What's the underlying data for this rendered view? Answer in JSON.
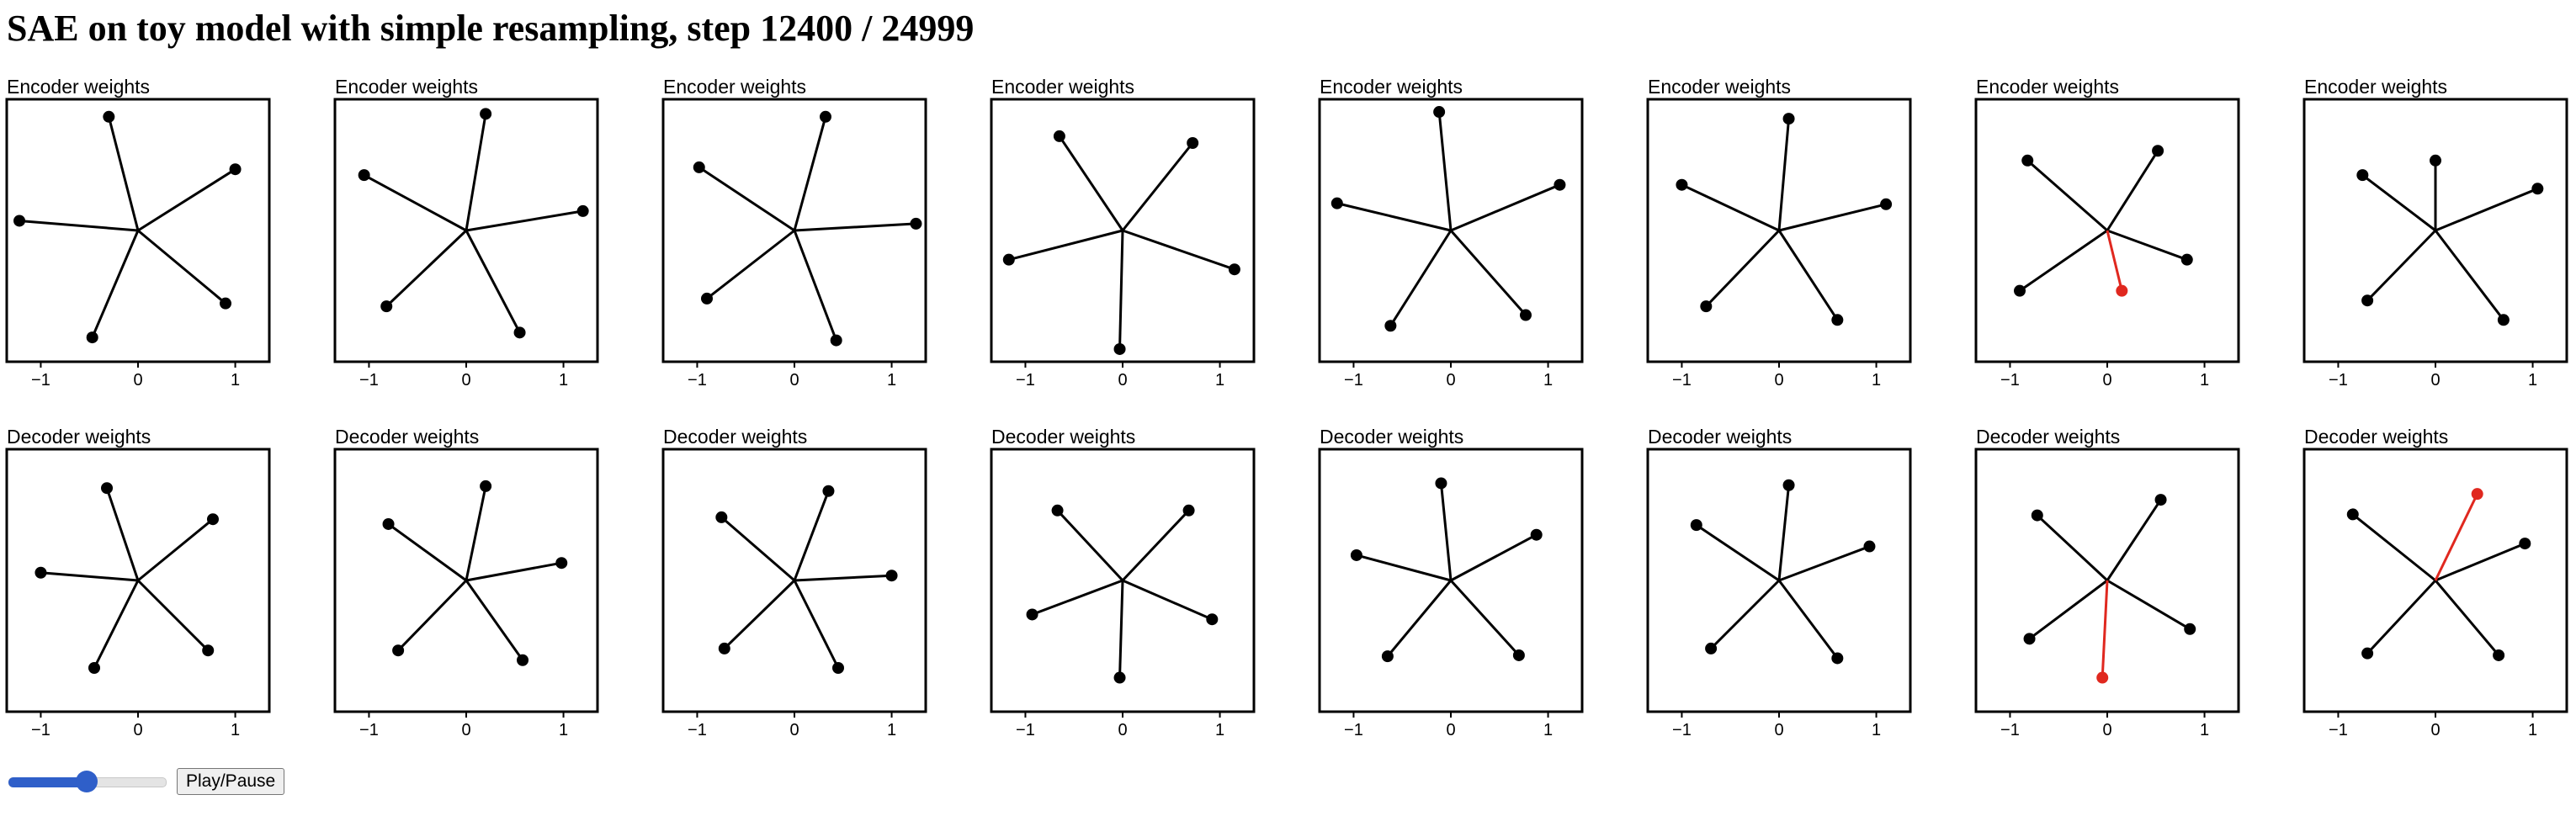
{
  "page": {
    "title": "SAE on toy model with simple resampling, step 12400 / 24999"
  },
  "controls": {
    "slider_progress": 0.496,
    "play_label": "Play/Pause"
  },
  "chart_data": {
    "type": "scatter",
    "style": "vectors-from-origin",
    "xlim": [
      -1.35,
      1.35
    ],
    "ylim": [
      -1.35,
      1.35
    ],
    "xticks": [
      -1,
      0,
      1
    ],
    "xtick_labels": [
      "−1",
      "0",
      "1"
    ],
    "grid": false,
    "colors": {
      "normal": "#000000",
      "resampled": "#e0281f"
    },
    "rows": [
      {
        "label": "Encoder weights",
        "panels": [
          {
            "points": [
              [
                -0.3,
                1.17
              ],
              [
                1.0,
                0.63
              ],
              [
                -1.22,
                0.1
              ],
              [
                0.9,
                -0.75
              ],
              [
                -0.47,
                -1.1
              ]
            ],
            "resampled": []
          },
          {
            "points": [
              [
                0.2,
                1.2
              ],
              [
                1.2,
                0.2
              ],
              [
                -1.05,
                0.57
              ],
              [
                -0.82,
                -0.78
              ],
              [
                0.55,
                -1.05
              ]
            ],
            "resampled": []
          },
          {
            "points": [
              [
                0.32,
                1.17
              ],
              [
                1.25,
                0.07
              ],
              [
                -0.98,
                0.65
              ],
              [
                -0.9,
                -0.7
              ],
              [
                0.43,
                -1.13
              ]
            ],
            "resampled": []
          },
          {
            "points": [
              [
                -0.65,
                0.97
              ],
              [
                0.72,
                0.9
              ],
              [
                -1.17,
                -0.3
              ],
              [
                1.15,
                -0.4
              ],
              [
                -0.03,
                -1.22
              ]
            ],
            "resampled": []
          },
          {
            "points": [
              [
                -0.12,
                1.22
              ],
              [
                1.12,
                0.47
              ],
              [
                -1.17,
                0.28
              ],
              [
                -0.62,
                -0.98
              ],
              [
                0.77,
                -0.87
              ]
            ],
            "resampled": []
          },
          {
            "points": [
              [
                0.1,
                1.15
              ],
              [
                1.1,
                0.27
              ],
              [
                -1.0,
                0.47
              ],
              [
                -0.75,
                -0.78
              ],
              [
                0.6,
                -0.92
              ]
            ],
            "resampled": []
          },
          {
            "points": [
              [
                -0.82,
                0.72
              ],
              [
                0.52,
                0.82
              ],
              [
                0.82,
                -0.3
              ],
              [
                -0.9,
                -0.62
              ]
            ],
            "resampled": [
              [
                0.15,
                -0.62
              ]
            ]
          },
          {
            "points": [
              [
                0.0,
                0.72
              ],
              [
                1.05,
                0.43
              ],
              [
                -0.75,
                0.57
              ],
              [
                -0.7,
                -0.72
              ],
              [
                0.7,
                -0.92
              ]
            ],
            "resampled": []
          }
        ]
      },
      {
        "label": "Decoder weights",
        "panels": [
          {
            "points": [
              [
                -0.32,
                0.95
              ],
              [
                0.77,
                0.63
              ],
              [
                -1.0,
                0.08
              ],
              [
                0.72,
                -0.72
              ],
              [
                -0.45,
                -0.9
              ]
            ],
            "resampled": []
          },
          {
            "points": [
              [
                0.2,
                0.97
              ],
              [
                0.98,
                0.18
              ],
              [
                -0.8,
                0.58
              ],
              [
                -0.7,
                -0.72
              ],
              [
                0.58,
                -0.82
              ]
            ],
            "resampled": []
          },
          {
            "points": [
              [
                0.35,
                0.92
              ],
              [
                1.0,
                0.05
              ],
              [
                -0.75,
                0.65
              ],
              [
                -0.72,
                -0.7
              ],
              [
                0.45,
                -0.9
              ]
            ],
            "resampled": []
          },
          {
            "points": [
              [
                -0.67,
                0.72
              ],
              [
                0.68,
                0.72
              ],
              [
                -0.93,
                -0.35
              ],
              [
                0.92,
                -0.4
              ],
              [
                -0.03,
                -1.0
              ]
            ],
            "resampled": []
          },
          {
            "points": [
              [
                -0.1,
                1.0
              ],
              [
                0.88,
                0.47
              ],
              [
                -0.97,
                0.26
              ],
              [
                -0.65,
                -0.78
              ],
              [
                0.7,
                -0.77
              ]
            ],
            "resampled": []
          },
          {
            "points": [
              [
                0.1,
                0.98
              ],
              [
                0.93,
                0.35
              ],
              [
                -0.85,
                0.57
              ],
              [
                -0.7,
                -0.7
              ],
              [
                0.6,
                -0.8
              ]
            ],
            "resampled": []
          },
          {
            "points": [
              [
                -0.72,
                0.67
              ],
              [
                0.55,
                0.83
              ],
              [
                0.85,
                -0.5
              ],
              [
                -0.8,
                -0.6
              ]
            ],
            "resampled": [
              [
                -0.05,
                -1.0
              ]
            ]
          },
          {
            "points": [
              [
                -0.85,
                0.68
              ],
              [
                0.92,
                0.38
              ],
              [
                -0.7,
                -0.75
              ],
              [
                0.65,
                -0.77
              ]
            ],
            "resampled": [
              [
                0.43,
                0.89
              ]
            ]
          }
        ]
      }
    ]
  }
}
